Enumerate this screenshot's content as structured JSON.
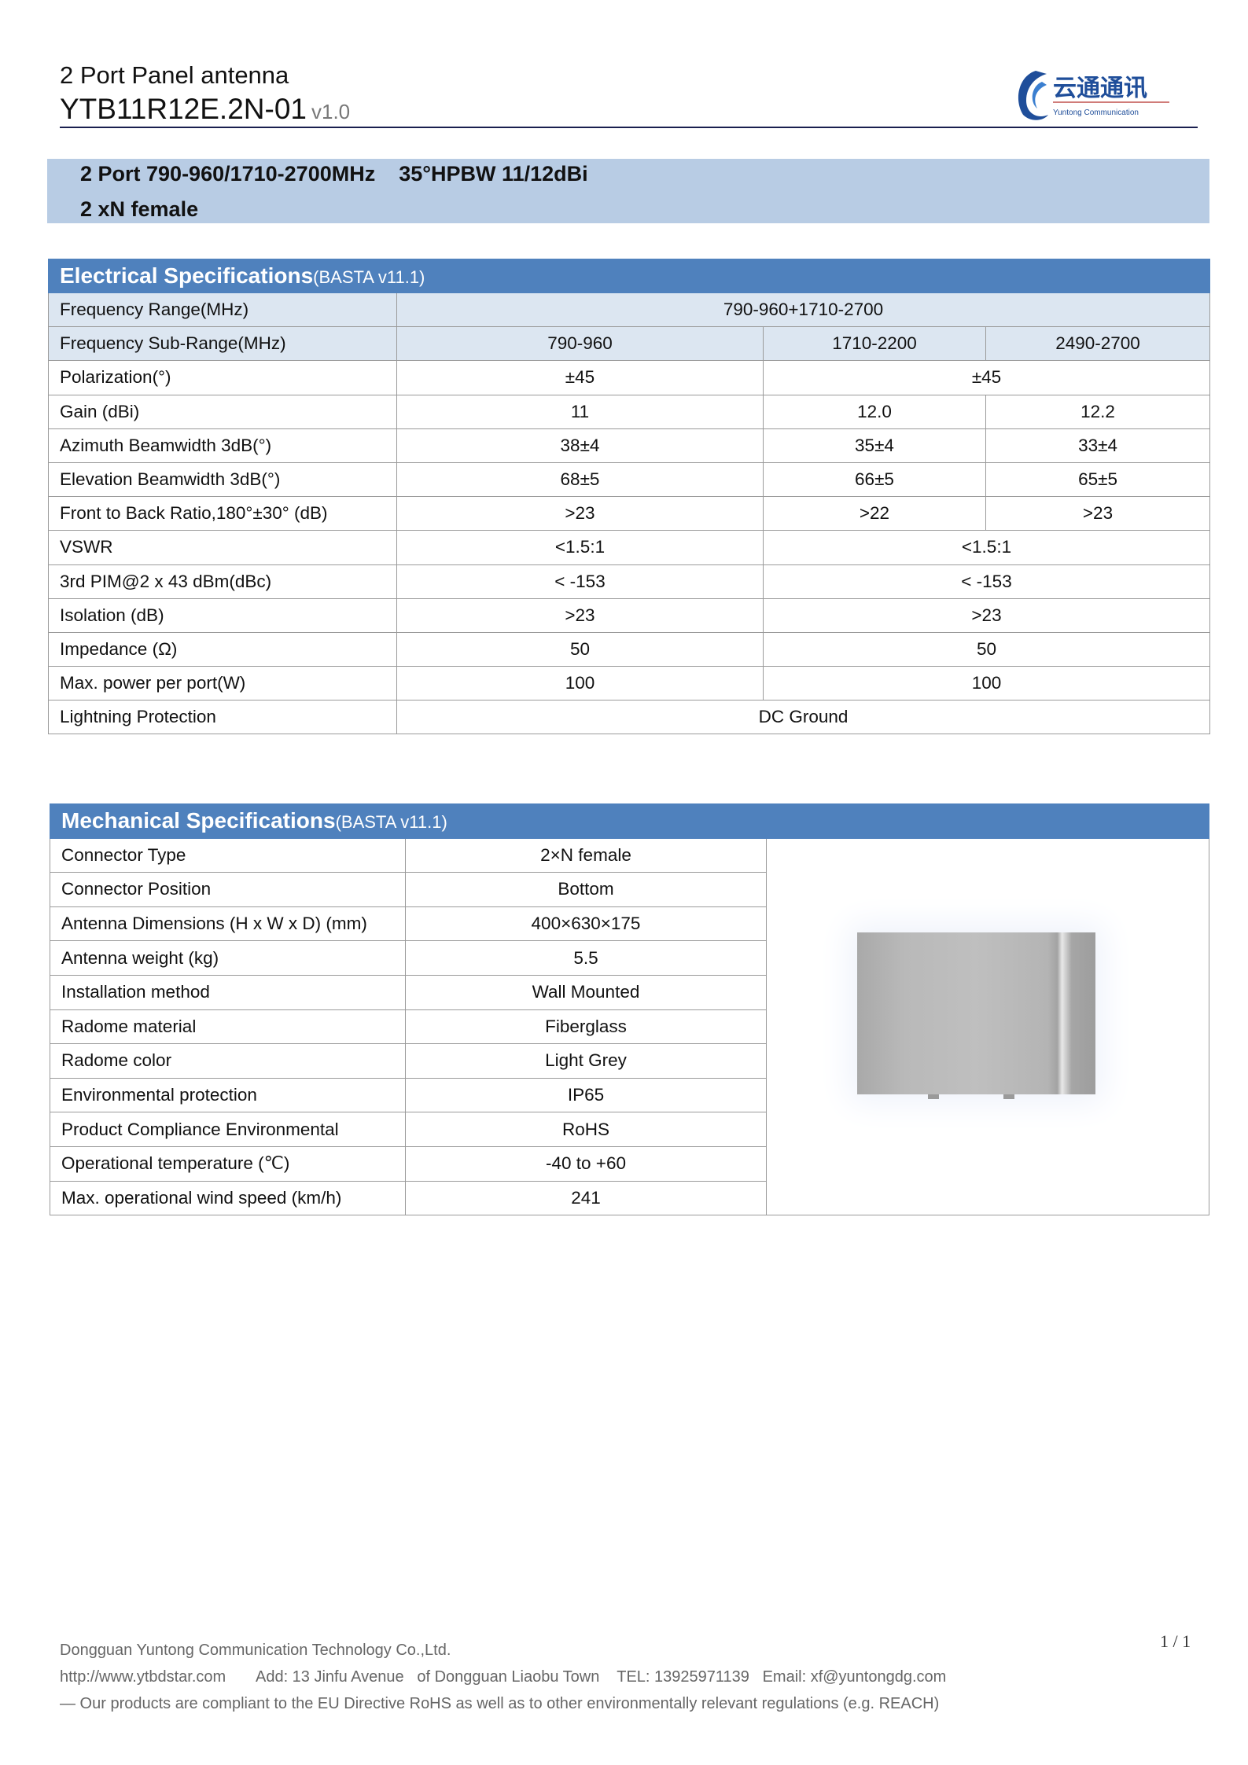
{
  "header": {
    "product_type": "2 Port Panel antenna",
    "model": "YTB11R12E.2N-01",
    "version": "v1.0",
    "logo": {
      "chinese": "云通通讯",
      "english": "Yuntong Communication"
    }
  },
  "summary": {
    "line1": "2 Port 790-960/1710-2700MHz    35°HPBW 11/12dBi",
    "line2": "2 xN female"
  },
  "electrical": {
    "title": "Electrical Specifications",
    "subtitle": "(BASTA v11.1)",
    "rows": [
      {
        "label": "Frequency Range(MHz)",
        "values": [
          "790-960+1710-2700"
        ]
      },
      {
        "label": "Frequency Sub-Range(MHz)",
        "values": [
          "790-960",
          "1710-2200",
          "2490-2700"
        ]
      },
      {
        "label": "Polarization(°)",
        "values": [
          "±45",
          "±45"
        ]
      },
      {
        "label": "Gain (dBi)",
        "values": [
          "11",
          "12.0",
          "12.2"
        ]
      },
      {
        "label": "Azimuth Beamwidth 3dB(°)",
        "values": [
          "38±4",
          "35±4",
          "33±4"
        ]
      },
      {
        "label": "Elevation Beamwidth 3dB(°)",
        "values": [
          "68±5",
          "66±5",
          "65±5"
        ]
      },
      {
        "label": "Front to Back Ratio,180°±30° (dB)",
        "values": [
          ">23",
          ">22",
          ">23"
        ]
      },
      {
        "label": "VSWR",
        "values": [
          "<1.5:1",
          "<1.5:1"
        ]
      },
      {
        "label": "3rd PIM@2 x 43 dBm(dBc)",
        "values": [
          "< -153",
          "< -153"
        ]
      },
      {
        "label": "Isolation (dB)",
        "values": [
          ">23",
          ">23"
        ]
      },
      {
        "label": "Impedance (Ω)",
        "values": [
          "50",
          "50"
        ]
      },
      {
        "label": "Max. power per port(W)",
        "values": [
          "100",
          "100"
        ]
      },
      {
        "label": "Lightning Protection",
        "values": [
          "DC Ground"
        ]
      }
    ]
  },
  "mechanical": {
    "title": "Mechanical Specifications",
    "subtitle": "(BASTA v11.1)",
    "rows": [
      {
        "label": "Connector Type",
        "value": "2×N female"
      },
      {
        "label": "Connector Position",
        "value": "Bottom"
      },
      {
        "label": "Antenna Dimensions (H x W x D) (mm)",
        "value": "400×630×175"
      },
      {
        "label": "Antenna weight (kg)",
        "value": "5.5"
      },
      {
        "label": "Installation method",
        "value": "Wall Mounted"
      },
      {
        "label": "Radome material",
        "value": "Fiberglass"
      },
      {
        "label": "Radome color",
        "value": "Light Grey"
      },
      {
        "label": "Environmental protection",
        "value": "IP65"
      },
      {
        "label": "Product Compliance Environmental",
        "value": "RoHS"
      },
      {
        "label": "Operational temperature (℃)",
        "value": "-40 to +60"
      },
      {
        "label": "Max. operational wind speed (km/h)",
        "value": "241"
      }
    ]
  },
  "footer": {
    "company": "Dongguan Yuntong Communication Technology Co.,Ltd.",
    "contact": "http://www.ytbdstar.com       Add: 13 Jinfu Avenue   of Dongguan Liaobu Town    TEL: 13925971139   Email: xf@yuntongdg.com",
    "compliance": "— Our products are compliant to the EU Directive RoHS as well as to other environmentally relevant regulations (e.g. REACH)",
    "page": "1 / 1"
  },
  "colors": {
    "header_blue": "#4f81bd",
    "band_blue": "#b8cce4",
    "row_shade": "#dce6f1",
    "rule": "#1a1f4f"
  }
}
